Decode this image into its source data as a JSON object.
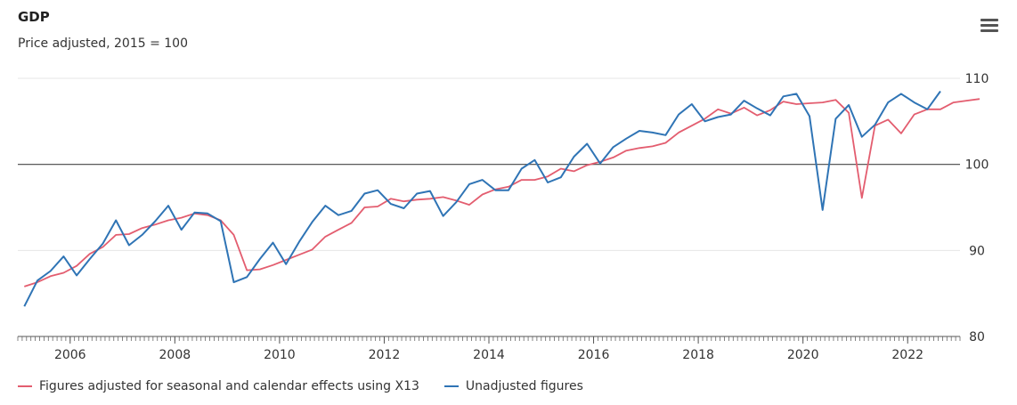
{
  "chart_data": {
    "type": "line",
    "title": "GDP",
    "subtitle": "Price adjusted, 2015 = 100",
    "xlabel": "",
    "ylabel": "",
    "x_start_year": 2005,
    "x_frequency": "quarterly",
    "xticks": [
      "2006",
      "2008",
      "2010",
      "2012",
      "2014",
      "2016",
      "2018",
      "2020",
      "2022"
    ],
    "yticks": [
      "80",
      "90",
      "100",
      "110"
    ],
    "ylim": [
      80,
      110
    ],
    "xlim": [
      2005.0,
      2023.0
    ],
    "reference_line": 100,
    "grid": true,
    "legend_position": "bottom-left",
    "series": [
      {
        "name": "Figures adjusted for seasonal and calendar effects using X13",
        "color": "#e35d6f",
        "values": [
          85.8,
          86.3,
          87.0,
          87.4,
          88.2,
          89.6,
          90.4,
          91.8,
          91.9,
          92.6,
          93.0,
          93.5,
          93.8,
          94.3,
          94.1,
          93.5,
          91.8,
          87.7,
          87.8,
          88.3,
          88.9,
          89.5,
          90.1,
          91.6,
          92.4,
          93.2,
          95.0,
          95.1,
          96.0,
          95.7,
          95.9,
          96.0,
          96.2,
          95.8,
          95.3,
          96.5,
          97.1,
          97.4,
          98.2,
          98.2,
          98.6,
          99.5,
          99.2,
          99.9,
          100.3,
          100.8,
          101.6,
          101.9,
          102.1,
          102.5,
          103.7,
          104.5,
          105.3,
          106.4,
          105.9,
          106.6,
          105.7,
          106.3,
          107.3,
          107.0,
          107.1,
          107.2,
          107.5,
          106.0,
          96.1,
          104.5,
          105.2,
          103.6,
          105.8,
          106.4,
          106.4,
          107.2,
          107.4,
          107.6
        ]
      },
      {
        "name": "Unadjusted figures",
        "color": "#2f74b5",
        "values": [
          83.5,
          86.5,
          87.6,
          89.3,
          87.1,
          89.0,
          90.8,
          93.5,
          90.6,
          91.8,
          93.4,
          95.2,
          92.4,
          94.4,
          94.3,
          93.4,
          86.3,
          86.9,
          89.0,
          90.9,
          88.4,
          91.0,
          93.3,
          95.2,
          94.1,
          94.6,
          96.6,
          97.0,
          95.4,
          94.9,
          96.6,
          96.9,
          94.0,
          95.6,
          97.7,
          98.2,
          97.0,
          97.0,
          99.5,
          100.5,
          97.9,
          98.5,
          100.9,
          102.4,
          100.1,
          102.0,
          103.0,
          103.9,
          103.7,
          103.4,
          105.8,
          107.0,
          105.0,
          105.5,
          105.8,
          107.4,
          106.5,
          105.7,
          107.9,
          108.2,
          105.6,
          94.7,
          105.3,
          106.9,
          103.2,
          104.6,
          107.2,
          108.2,
          107.2,
          106.4,
          108.5
        ]
      }
    ]
  }
}
